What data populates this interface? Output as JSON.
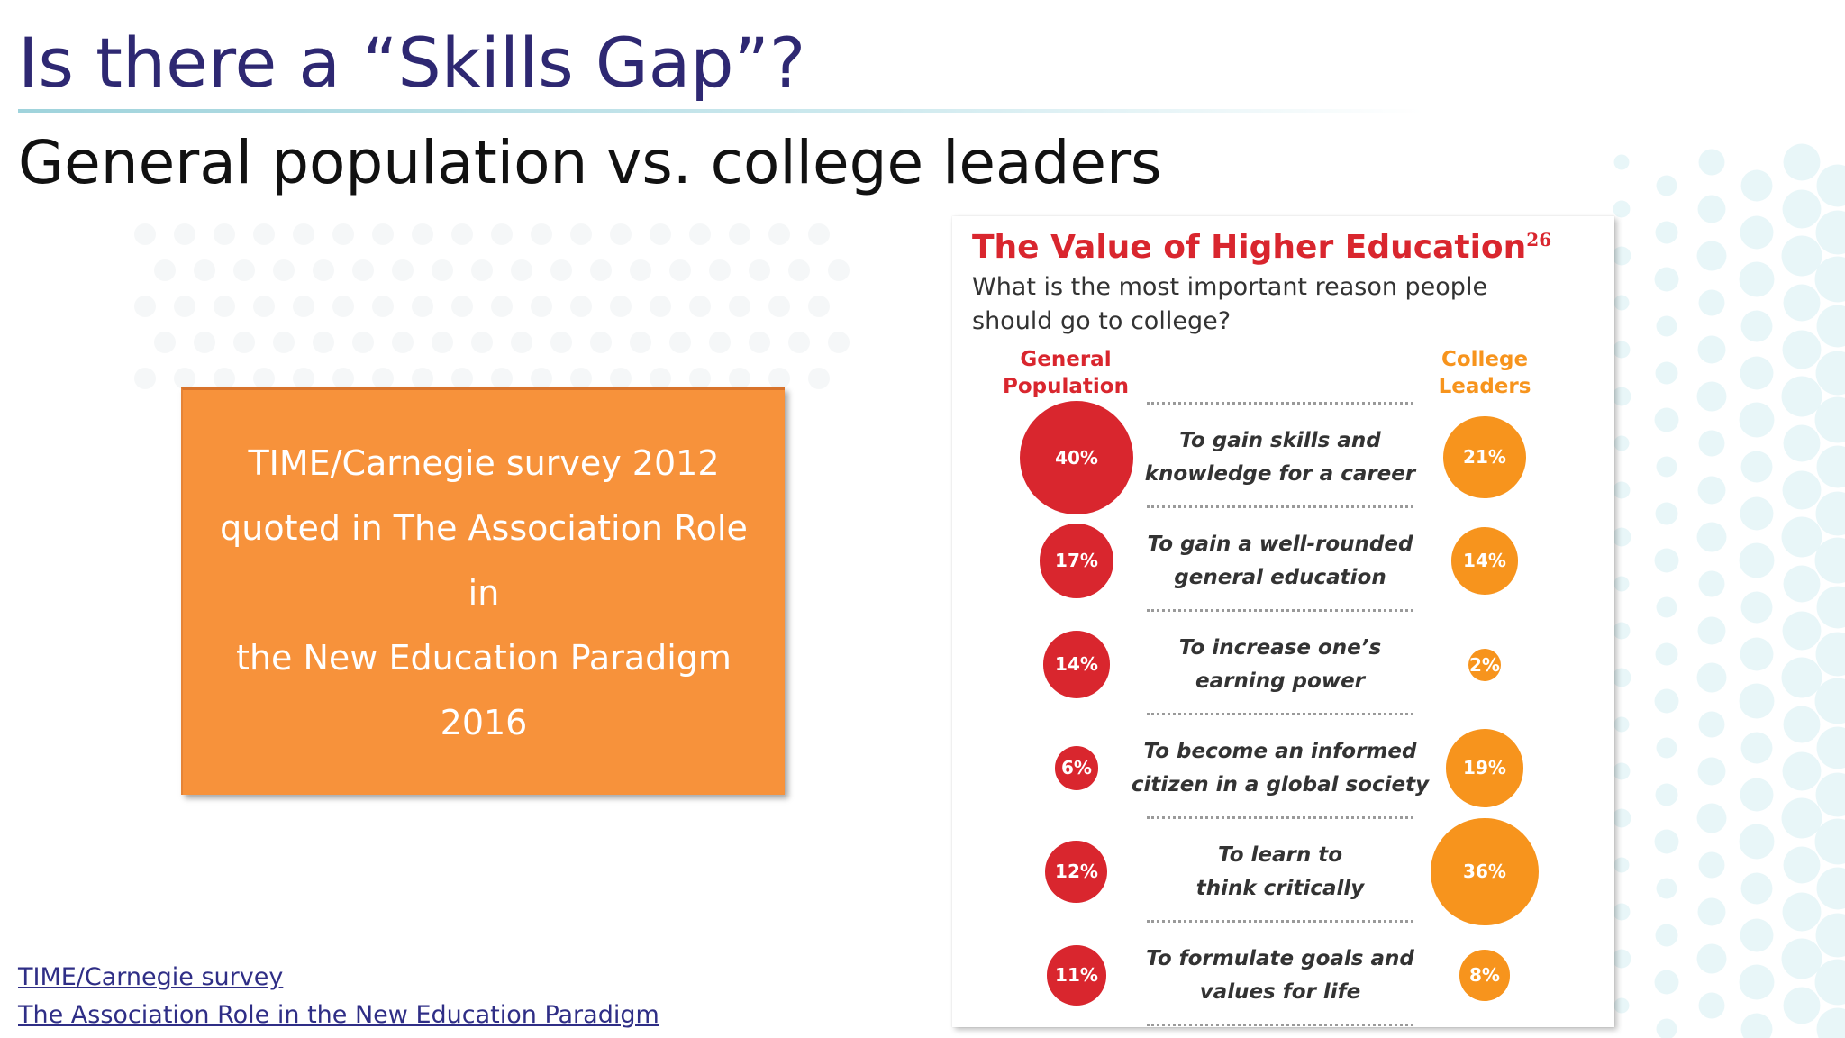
{
  "slide": {
    "title": "Is there a “Skills Gap”?",
    "subtitle": "General population vs. college leaders"
  },
  "quote_box": {
    "text": "TIME/Carnegie survey 2012\nquoted in The Association Role in\nthe New Education Paradigm 2016"
  },
  "sources": [
    {
      "label": "TIME/Carnegie survey"
    },
    {
      "label": "The Association Role in the New Education Paradigm"
    }
  ],
  "infographic": {
    "title": "The Value of Higher Education",
    "footnote": "26",
    "question": "What is the most important reason people should go to college?",
    "col_general": "General\nPopulation",
    "col_leaders": "College\nLeaders",
    "rows": [
      {
        "reason": "To gain skills and\nknowledge for a career",
        "general": "40%",
        "leaders": "21%",
        "general_value": 40,
        "leaders_value": 21
      },
      {
        "reason": "To gain a well-rounded\ngeneral education",
        "general": "17%",
        "leaders": "14%",
        "general_value": 17,
        "leaders_value": 14
      },
      {
        "reason": "To increase one’s\nearning power",
        "general": "14%",
        "leaders": "2%",
        "general_value": 14,
        "leaders_value": 2
      },
      {
        "reason": "To become an informed\ncitizen in a global society",
        "general": "6%",
        "leaders": "19%",
        "general_value": 6,
        "leaders_value": 19
      },
      {
        "reason": "To learn to\nthink critically",
        "general": "12%",
        "leaders": "36%",
        "general_value": 12,
        "leaders_value": 36
      },
      {
        "reason": "To formulate goals and\nvalues for life",
        "general": "11%",
        "leaders": "8%",
        "general_value": 11,
        "leaders_value": 8
      }
    ]
  },
  "colors": {
    "title": "#2e2872",
    "box": "#f7923b",
    "general_red": "#d9262e",
    "leaders_orange": "#f7941d",
    "link": "#2f2e86"
  }
}
